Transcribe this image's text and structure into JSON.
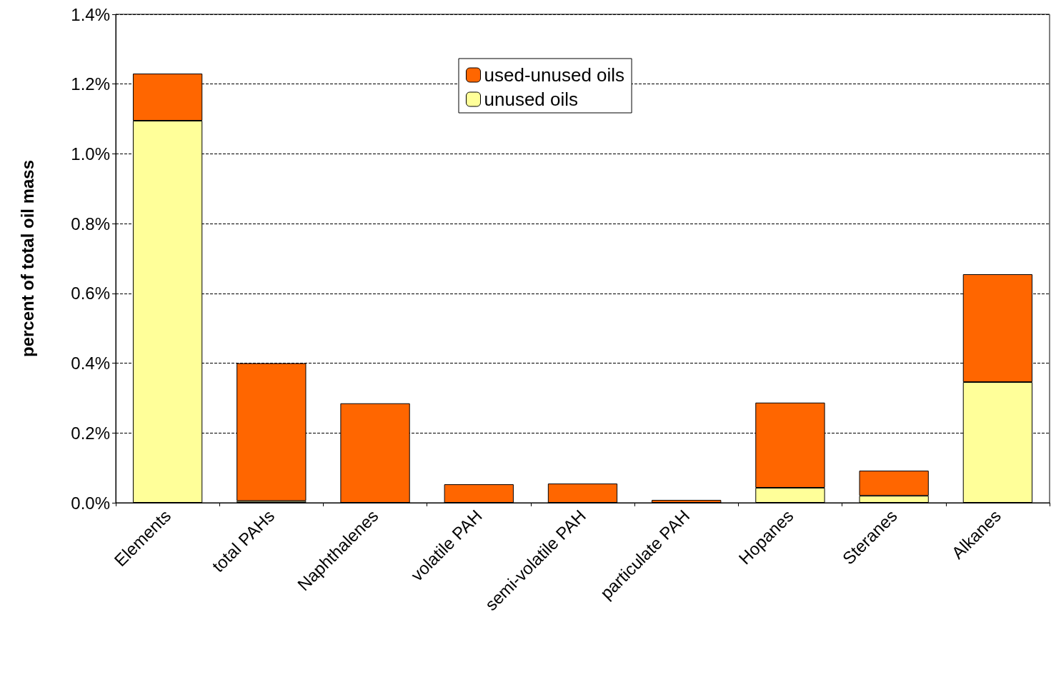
{
  "chart_data": {
    "type": "bar",
    "stacked": true,
    "ylabel": "percent of total oil mass",
    "categories": [
      "Elements",
      "total PAHs",
      "Naphthalenes",
      "volatile PAH",
      "semi-volatile PAH",
      "particulate PAH",
      "Hopanes",
      "Steranes",
      "Alkanes"
    ],
    "series": [
      {
        "name": "unused oils",
        "color": "#ffff99",
        "values": [
          1.095,
          0.005,
          0,
          0,
          0,
          0,
          0.043,
          0.02,
          0.346
        ]
      },
      {
        "name": "used-unused oils",
        "color": "#ff6600",
        "values": [
          0.135,
          0.395,
          0.285,
          0.053,
          0.055,
          0.008,
          0.244,
          0.072,
          0.309
        ]
      }
    ],
    "ylim": [
      0,
      1.4
    ],
    "yticks": [
      {
        "value": 0,
        "label": "0.0%"
      },
      {
        "value": 0.2,
        "label": "0.2%"
      },
      {
        "value": 0.4,
        "label": "0.4%"
      },
      {
        "value": 0.6,
        "label": "0.6%"
      },
      {
        "value": 0.8,
        "label": "0.8%"
      },
      {
        "value": 1.0,
        "label": "1.0%"
      },
      {
        "value": 1.2,
        "label": "1.2%"
      },
      {
        "value": 1.4,
        "label": "1.4%"
      }
    ],
    "grid": "y",
    "legend": "top"
  }
}
